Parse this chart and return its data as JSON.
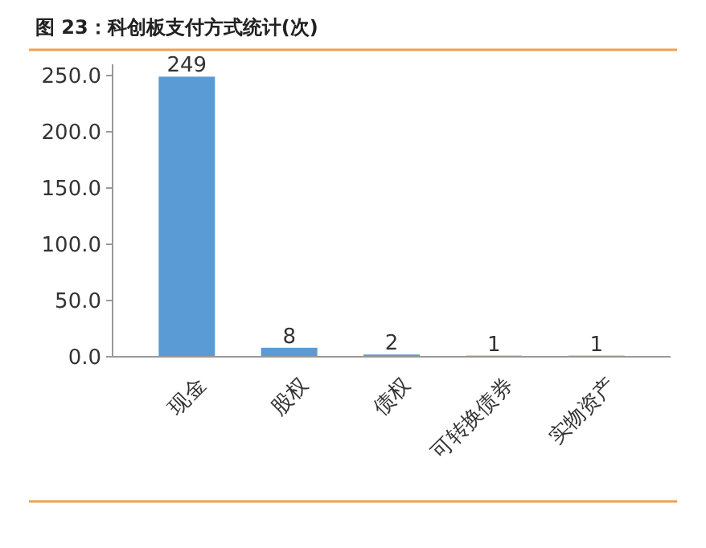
{
  "chart_data": {
    "type": "bar",
    "title": "图 23：科创板支付方式统计(次)",
    "categories": [
      "现金",
      "股权",
      "债权",
      "可转换债券",
      "实物资产"
    ],
    "values": [
      249,
      8,
      2,
      1,
      1
    ],
    "color": "#5b9bd5",
    "ylim": [
      0,
      260
    ],
    "yticks": [
      {
        "value": 0,
        "label": "0.0"
      },
      {
        "value": 50,
        "label": "50.0"
      },
      {
        "value": 100,
        "label": "100.0"
      },
      {
        "value": 150,
        "label": "150.0"
      },
      {
        "value": 200,
        "label": "200.0"
      },
      {
        "value": 250,
        "label": "250.0"
      }
    ],
    "data_labels": true
  }
}
